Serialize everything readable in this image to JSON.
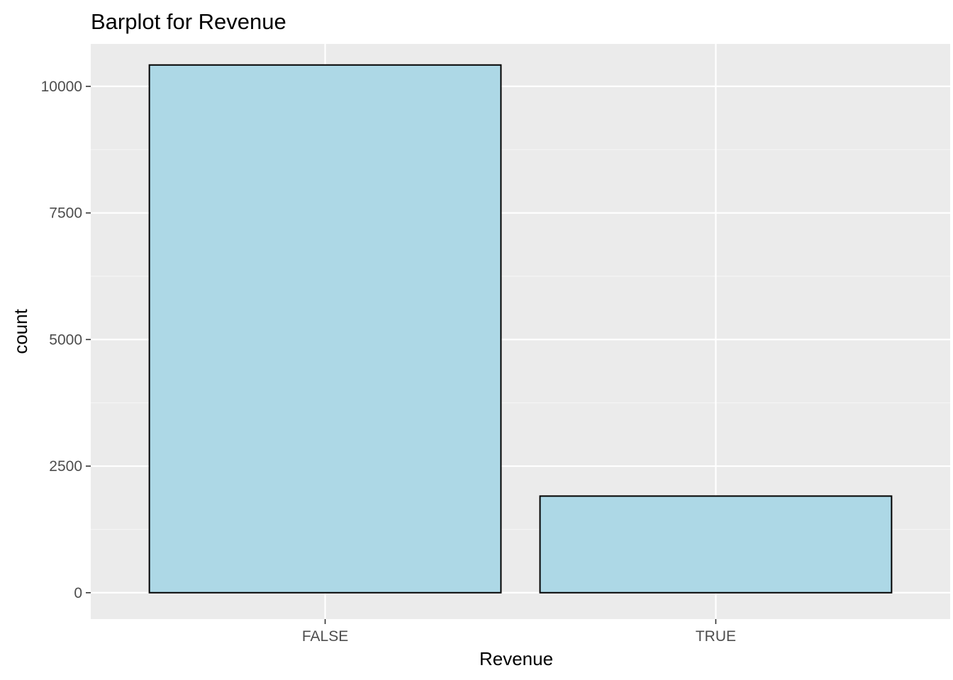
{
  "chart_data": {
    "type": "bar",
    "title": "Barplot for Revenue",
    "xlabel": "Revenue",
    "ylabel": "count",
    "categories": [
      "FALSE",
      "TRUE"
    ],
    "values": [
      10422,
      1908
    ],
    "ylim": [
      -521,
      10838
    ],
    "yticks": [
      0,
      2500,
      5000,
      7500,
      10000
    ],
    "ytick_labels": [
      "0",
      "2500",
      "5000",
      "7500",
      "10000"
    ],
    "grid": true,
    "legend": "none",
    "colors": {
      "panel_background": "#ebebeb",
      "grid_major": "#ffffff",
      "grid_minor": "#f5f5f5",
      "bar_fill": "#add8e6",
      "bar_outline": "#000000",
      "tick_text": "#4d4d4d",
      "tick_mark": "#333333"
    }
  }
}
